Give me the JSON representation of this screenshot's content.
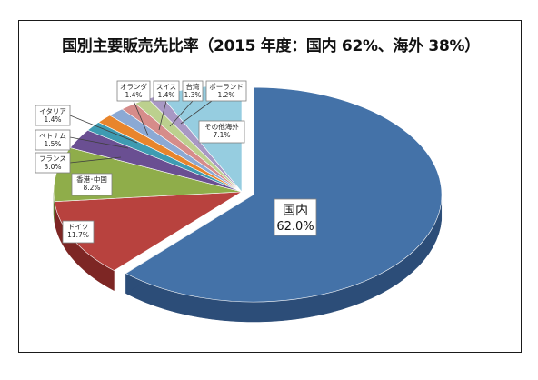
{
  "title": "国別主要販売先比率（2015 年度：国内 62%、海外 38%）",
  "chart_data": {
    "type": "pie",
    "title": "国別主要販売先比率（2015 年度：国内 62%、海外 38%）",
    "three_d": true,
    "exploded_slice": "国内",
    "legend": "none",
    "slices": [
      {
        "label": "国内",
        "value": 62.0,
        "display": "62.0%",
        "color": "#4472a8",
        "side": "#2c4d78"
      },
      {
        "label": "ドイツ",
        "value": 11.7,
        "display": "11.7%",
        "color": "#b8423e",
        "side": "#7d2624"
      },
      {
        "label": "香港･中国",
        "value": 8.2,
        "display": "8.2%",
        "color": "#8fad4a",
        "side": "#5e7830"
      },
      {
        "label": "フランス",
        "value": 3.0,
        "display": "3.0%",
        "color": "#6a4f92",
        "side": "#463262"
      },
      {
        "label": "ベトナム",
        "value": 1.5,
        "display": "1.5%",
        "color": "#3e9bb2",
        "side": "#276a7a"
      },
      {
        "label": "イタリア",
        "value": 1.4,
        "display": "1.4%",
        "color": "#e8852c",
        "side": "#a05a18"
      },
      {
        "label": "オランダ",
        "value": 1.4,
        "display": "1.4%",
        "color": "#8ba9d4",
        "side": "#5c769c"
      },
      {
        "label": "スイス",
        "value": 1.4,
        "display": "1.4%",
        "color": "#d68c8a",
        "side": "#9a5e5c"
      },
      {
        "label": "台湾",
        "value": 1.3,
        "display": "1.3%",
        "color": "#bcd08e",
        "side": "#869a5e"
      },
      {
        "label": "ポーランド",
        "value": 1.2,
        "display": "1.2%",
        "color": "#a898c4",
        "side": "#74688e"
      },
      {
        "label": "その他海外",
        "value": 7.1,
        "display": "7.1%",
        "color": "#96cde0",
        "side": "#5f9aae"
      }
    ]
  }
}
